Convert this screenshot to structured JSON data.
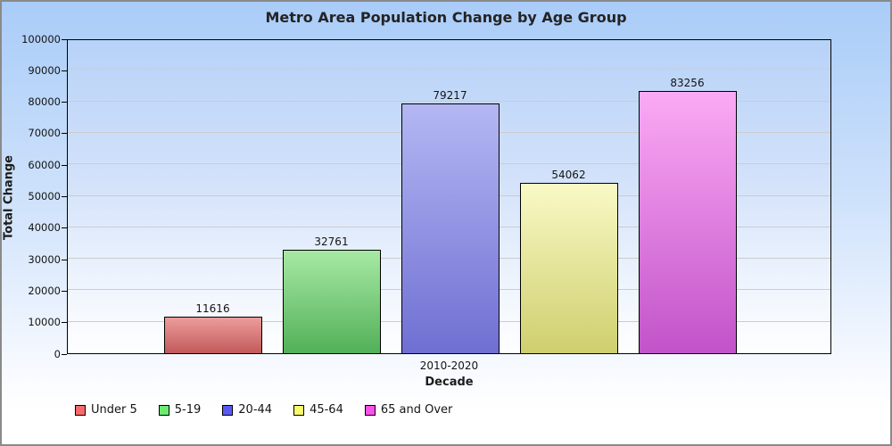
{
  "window": {
    "border_color": "#8a8a8a",
    "background_top": "#a9ccf8",
    "background_bottom": "#ffffff"
  },
  "chart_data": {
    "type": "bar",
    "title": "Metro Area Population Change by Age Group",
    "xlabel": "Decade",
    "ylabel": "Total Change",
    "categories": [
      "2010-2020"
    ],
    "series": [
      {
        "name": "Under 5",
        "values": [
          11616
        ],
        "color_top": "#ee9c9c",
        "color_bottom": "#c25a5a",
        "legend_color": "#f56b6b"
      },
      {
        "name": "5-19",
        "values": [
          32761
        ],
        "color_top": "#a7e9a4",
        "color_bottom": "#52b058",
        "legend_color": "#6ceb74"
      },
      {
        "name": "20-44",
        "values": [
          79217
        ],
        "color_top": "#b4b7f3",
        "color_bottom": "#6f6fd2",
        "legend_color": "#5a5af2"
      },
      {
        "name": "45-64",
        "values": [
          54062
        ],
        "color_top": "#f9f9c6",
        "color_bottom": "#cfcf6e",
        "legend_color": "#fafa6e"
      },
      {
        "name": "65 and Over",
        "values": [
          83256
        ],
        "color_top": "#fbaaf4",
        "color_bottom": "#c253c9",
        "legend_color": "#fb51e9"
      }
    ],
    "ylim": [
      0,
      100000
    ],
    "ytick_step": 10000,
    "ytick_labels": [
      "0",
      "10000",
      "20000",
      "30000",
      "40000",
      "50000",
      "60000",
      "70000",
      "80000",
      "90000",
      "100000"
    ],
    "grid": true,
    "legend_position": "bottom",
    "value_labels_shown": true,
    "gridline_color": "#cccccc",
    "plot_border_color": "#000000"
  }
}
